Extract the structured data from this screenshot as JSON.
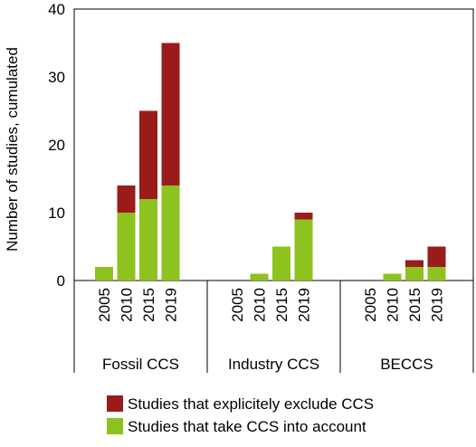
{
  "chart_data": {
    "type": "bar",
    "stacked": true,
    "ylabel": "Number of studies, cumulated",
    "ylim": [
      0,
      40
    ],
    "yticks": [
      0,
      10,
      20,
      30,
      40
    ],
    "groups": [
      {
        "label": "Fossil CCS",
        "years": [
          "2005",
          "2010",
          "2015",
          "2019"
        ]
      },
      {
        "label": "Industry CCS",
        "years": [
          "2005",
          "2010",
          "2015",
          "2019"
        ]
      },
      {
        "label": "BECCS",
        "years": [
          "2005",
          "2010",
          "2015",
          "2019"
        ]
      }
    ],
    "series": [
      {
        "name": "Studies that take CCS into account",
        "color": "#8dc21f",
        "values": [
          [
            2,
            10,
            12,
            14
          ],
          [
            0,
            1,
            5,
            9
          ],
          [
            0,
            1,
            2,
            2
          ]
        ]
      },
      {
        "name": "Studies that explicitely exclude CCS",
        "color": "#9b1b1b",
        "values": [
          [
            0,
            4,
            13,
            21
          ],
          [
            0,
            0,
            0,
            1
          ],
          [
            0,
            0,
            1,
            3
          ]
        ]
      }
    ],
    "legend_position": "bottom",
    "grid": false
  }
}
